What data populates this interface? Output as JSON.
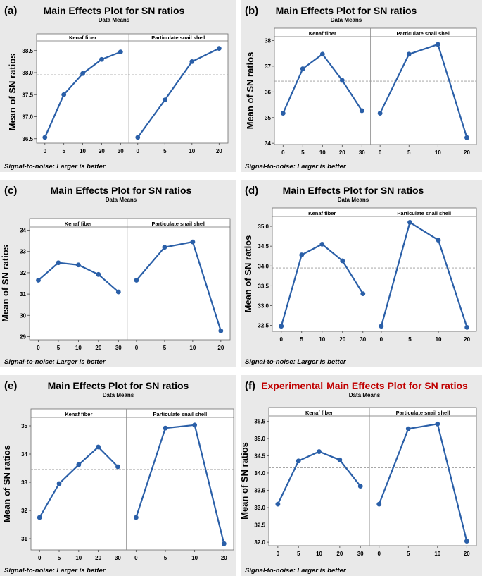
{
  "chart_data": [
    {
      "type": "line",
      "panel_label": "(a)",
      "title": "Main Effects Plot for SN ratios",
      "title_prefix": "",
      "subtitle": "Data Means",
      "ylabel": "Mean of SN ratios",
      "footnote": "Signal-to-noise: Larger is better",
      "ylim": [
        36.4,
        38.72
      ],
      "yticks": [
        "36.5",
        "37.0",
        "37.5",
        "38.0",
        "38.5"
      ],
      "mean_line": 37.95,
      "series": [
        {
          "name": "Kenaf fiber",
          "categories": [
            "0",
            "5",
            "10",
            "20",
            "30"
          ],
          "values": [
            36.53,
            37.5,
            37.98,
            38.3,
            38.47
          ]
        },
        {
          "name": "Particulate snail shell",
          "categories": [
            "0",
            "5",
            "10",
            "20"
          ],
          "values": [
            36.53,
            37.38,
            38.25,
            38.55
          ]
        }
      ]
    },
    {
      "type": "line",
      "panel_label": "(b)",
      "title": "Main Effects Plot for SN ratios",
      "title_prefix": "",
      "subtitle": "Data Means",
      "ylabel": "Mean of SN ratios",
      "footnote": "Signal-to-noise: Larger is better",
      "ylim": [
        33.95,
        38.15
      ],
      "yticks": [
        "34",
        "35",
        "36",
        "37",
        "38"
      ],
      "mean_line": 36.42,
      "series": [
        {
          "name": "Kenaf fiber",
          "categories": [
            "0",
            "5",
            "10",
            "20",
            "30"
          ],
          "values": [
            35.17,
            36.9,
            37.47,
            36.45,
            35.27
          ]
        },
        {
          "name": "Particulate snail shell",
          "categories": [
            "0",
            "5",
            "10",
            "20"
          ],
          "values": [
            35.17,
            37.47,
            37.85,
            34.22
          ]
        }
      ]
    },
    {
      "type": "line",
      "panel_label": "(c)",
      "title": "Main Effects Plot for SN ratios",
      "title_prefix": "",
      "subtitle": "Data Means",
      "ylabel": "Mean of SN ratios",
      "footnote": "Signal-to-noise: Larger is better",
      "ylim": [
        28.85,
        34.15
      ],
      "yticks": [
        "29",
        "30",
        "31",
        "32",
        "33",
        "34"
      ],
      "mean_line": 31.95,
      "series": [
        {
          "name": "Kenaf fiber",
          "categories": [
            "0",
            "5",
            "10",
            "20",
            "30"
          ],
          "values": [
            31.65,
            32.47,
            32.37,
            31.92,
            31.1
          ]
        },
        {
          "name": "Particulate snail shell",
          "categories": [
            "0",
            "5",
            "10",
            "20"
          ],
          "values": [
            31.65,
            33.2,
            33.45,
            29.27
          ]
        }
      ]
    },
    {
      "type": "line",
      "panel_label": "(d)",
      "title": "Main Effects Plot for SN ratios",
      "title_prefix": "",
      "subtitle": "Data Means",
      "ylabel": "Mean of SN ratios",
      "footnote": "Signal-to-noise: Larger is better",
      "ylim": [
        32.35,
        35.25
      ],
      "yticks": [
        "32.5",
        "33.0",
        "33.5",
        "34.0",
        "34.5",
        "35.0"
      ],
      "mean_line": 33.95,
      "series": [
        {
          "name": "Kenaf fiber",
          "categories": [
            "0",
            "5",
            "10",
            "20",
            "30"
          ],
          "values": [
            32.48,
            34.28,
            34.55,
            34.13,
            33.3
          ]
        },
        {
          "name": "Particulate snail shell",
          "categories": [
            "0",
            "5",
            "10",
            "20"
          ],
          "values": [
            32.48,
            35.1,
            34.65,
            32.45
          ]
        }
      ]
    },
    {
      "type": "line",
      "panel_label": "(e)",
      "title": "Main Effects Plot for SN ratios",
      "title_prefix": "",
      "subtitle": "Data Means",
      "ylabel": "Mean of SN ratios",
      "footnote": "Signal-to-noise: Larger is better",
      "ylim": [
        30.6,
        35.3
      ],
      "yticks": [
        "31",
        "32",
        "33",
        "34",
        "35"
      ],
      "mean_line": 33.45,
      "series": [
        {
          "name": "Kenaf fiber",
          "categories": [
            "0",
            "5",
            "10",
            "20",
            "30"
          ],
          "values": [
            31.75,
            32.95,
            33.62,
            34.25,
            33.55
          ]
        },
        {
          "name": "Particulate snail shell",
          "categories": [
            "0",
            "5",
            "10",
            "20"
          ],
          "values": [
            31.75,
            34.92,
            35.03,
            30.82
          ]
        }
      ]
    },
    {
      "type": "line",
      "panel_label": "(f)",
      "title": "Main Effects Plot for SN ratios",
      "title_prefix": "Experimental",
      "subtitle": "Data Means",
      "ylabel": "Mean of SN ratios",
      "footnote": "Signal-to-noise: Larger is better",
      "ylim": [
        31.9,
        35.65
      ],
      "yticks": [
        "32.0",
        "32.5",
        "33.0",
        "33.5",
        "34.0",
        "34.5",
        "35.0",
        "35.5"
      ],
      "mean_line": 34.15,
      "series": [
        {
          "name": "Kenaf fiber",
          "categories": [
            "0",
            "5",
            "10",
            "20",
            "30"
          ],
          "values": [
            33.1,
            34.35,
            34.62,
            34.38,
            33.62
          ]
        },
        {
          "name": "Particulate snail shell",
          "categories": [
            "0",
            "5",
            "10",
            "20"
          ],
          "values": [
            33.1,
            35.28,
            35.42,
            32.03
          ]
        }
      ]
    }
  ],
  "colors": {
    "line": "#2a5fa8",
    "panel_bg": "#e9e9e9",
    "plot_bg": "#ffffff",
    "mean_line": "#9a9a9a",
    "title_accent": "#c00000",
    "text": "#000000"
  }
}
